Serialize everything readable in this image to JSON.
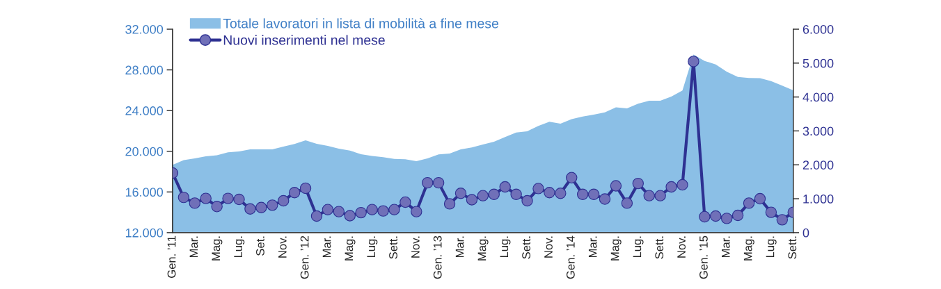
{
  "chart_data": {
    "type": "area",
    "categories": [
      "Gen. ’11",
      null,
      "Mar.",
      null,
      "Mag.",
      null,
      "Lug.",
      null,
      "Set.",
      null,
      "Nov.",
      null,
      "Gen. ’12",
      null,
      "Mar.",
      null,
      "Mag.",
      null,
      "Lug.",
      null,
      "Sett.",
      null,
      "Nov.",
      null,
      "Gen. ’13",
      null,
      "Mar.",
      null,
      "Mag.",
      null,
      "Lug.",
      null,
      "Sett.",
      null,
      "Nov.",
      null,
      "Gen. ’14",
      null,
      "Mar.",
      null,
      "Mag.",
      null,
      "Lug.",
      null,
      "Sett.",
      null,
      "Nov.",
      null,
      "Gen. ’15",
      null,
      "Mar.",
      null,
      "Mag.",
      null,
      "Lug.",
      null,
      "Sett."
    ],
    "series": [
      {
        "name": "Totale lavoratori in lista di mobilità a fine mese",
        "color": "#8bbfe6",
        "values": [
          18670,
          19120,
          19300,
          19510,
          19600,
          19900,
          19990,
          20190,
          20190,
          20190,
          20460,
          20710,
          21080,
          20740,
          20530,
          20260,
          20070,
          19710,
          19530,
          19420,
          19240,
          19220,
          19030,
          19300,
          19690,
          19780,
          20190,
          20370,
          20670,
          20940,
          21400,
          21850,
          21970,
          22490,
          22900,
          22720,
          23150,
          23420,
          23600,
          23830,
          24310,
          24220,
          24680,
          24970,
          24970,
          25380,
          25970,
          29500,
          28880,
          28540,
          27810,
          27310,
          27200,
          27180,
          26900,
          26450,
          26000
        ]
      },
      {
        "name": "Nuovi inserimenti nel mese",
        "type": "line",
        "marker": "circle",
        "axis": "y2",
        "color": "#2e3192",
        "values": [
          1760,
          1040,
          870,
          1010,
          770,
          1010,
          980,
          700,
          740,
          810,
          940,
          1180,
          1310,
          490,
          680,
          620,
          500,
          590,
          680,
          640,
          680,
          900,
          620,
          1470,
          1470,
          850,
          1160,
          970,
          1090,
          1130,
          1350,
          1130,
          940,
          1300,
          1180,
          1160,
          1620,
          1130,
          1130,
          990,
          1380,
          870,
          1450,
          1090,
          1090,
          1350,
          1410,
          5050,
          470,
          490,
          420,
          510,
          870,
          1000,
          600,
          380,
          600
        ]
      }
    ],
    "ylim": [
      12000,
      32000
    ],
    "yticks": [
      {
        "value": 12000,
        "label": "12.000"
      },
      {
        "value": 16000,
        "label": "16.000"
      },
      {
        "value": 20000,
        "label": "20.000"
      },
      {
        "value": 24000,
        "label": "24.000"
      },
      {
        "value": 28000,
        "label": "28.000"
      },
      {
        "value": 32000,
        "label": "32.000"
      }
    ],
    "y2lim": [
      0,
      6000
    ],
    "y2ticks": [
      0,
      {
        "value": 1000,
        "label": "1.000"
      },
      {
        "value": 2000,
        "label": "2.000"
      },
      {
        "value": 3000,
        "label": "3.000"
      },
      {
        "value": 4000,
        "label": "4.000"
      },
      {
        "value": 5000,
        "label": "5.000"
      },
      {
        "value": 6000,
        "label": "6.000"
      }
    ],
    "legend": "top left"
  }
}
